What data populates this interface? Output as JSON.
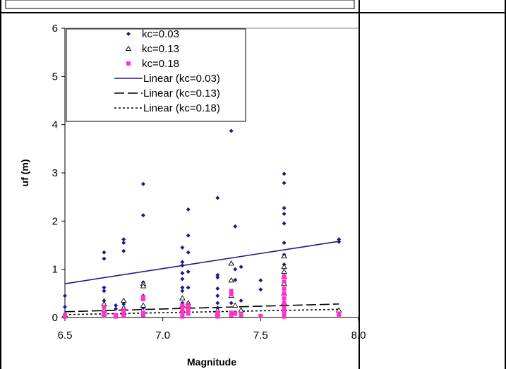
{
  "chart_data": {
    "type": "scatter",
    "xlabel": "Magnitude",
    "ylabel": "uf (m)",
    "xlim": [
      6.5,
      8.0
    ],
    "ylim": [
      0,
      6
    ],
    "xticks": [
      "6.5",
      "7.0",
      "7.5",
      "8.0"
    ],
    "yticks": [
      "0",
      "1",
      "2",
      "3",
      "4",
      "5",
      "6"
    ],
    "grid": false,
    "legend_position": "top-left",
    "series": [
      {
        "name": "kc=0.03",
        "marker": "diamond",
        "color": "#1a1a8c",
        "points": [
          [
            6.5,
            0.45
          ],
          [
            6.5,
            0.22
          ],
          [
            6.7,
            1.35
          ],
          [
            6.7,
            1.22
          ],
          [
            6.7,
            0.62
          ],
          [
            6.7,
            0.55
          ],
          [
            6.7,
            0.35
          ],
          [
            6.7,
            0.2
          ],
          [
            6.76,
            0.25
          ],
          [
            6.76,
            0.18
          ],
          [
            6.8,
            1.62
          ],
          [
            6.8,
            1.55
          ],
          [
            6.8,
            1.38
          ],
          [
            6.8,
            0.28
          ],
          [
            6.9,
            2.77
          ],
          [
            6.9,
            2.12
          ],
          [
            6.9,
            0.73
          ],
          [
            6.9,
            0.45
          ],
          [
            6.9,
            0.38
          ],
          [
            6.9,
            0.2
          ],
          [
            7.1,
            1.45
          ],
          [
            7.1,
            1.15
          ],
          [
            7.1,
            1.08
          ],
          [
            7.1,
            0.92
          ],
          [
            7.1,
            0.8
          ],
          [
            7.1,
            0.62
          ],
          [
            7.1,
            0.55
          ],
          [
            7.1,
            0.4
          ],
          [
            7.1,
            0.3
          ],
          [
            7.1,
            0.2
          ],
          [
            7.1,
            0.12
          ],
          [
            7.13,
            2.24
          ],
          [
            7.13,
            1.7
          ],
          [
            7.13,
            1.35
          ],
          [
            7.13,
            0.95
          ],
          [
            7.13,
            0.62
          ],
          [
            7.13,
            0.3
          ],
          [
            7.28,
            2.48
          ],
          [
            7.28,
            0.88
          ],
          [
            7.28,
            0.83
          ],
          [
            7.28,
            0.6
          ],
          [
            7.28,
            0.45
          ],
          [
            7.28,
            0.3
          ],
          [
            7.28,
            0.2
          ],
          [
            7.35,
            3.87
          ],
          [
            7.35,
            0.3
          ],
          [
            7.37,
            1.89
          ],
          [
            7.37,
            1.0
          ],
          [
            7.37,
            0.78
          ],
          [
            7.4,
            1.05
          ],
          [
            7.4,
            0.35
          ],
          [
            7.5,
            0.77
          ],
          [
            7.5,
            0.58
          ],
          [
            7.62,
            2.98
          ],
          [
            7.62,
            2.79
          ],
          [
            7.62,
            2.27
          ],
          [
            7.62,
            2.15
          ],
          [
            7.62,
            1.95
          ],
          [
            7.62,
            1.55
          ],
          [
            7.62,
            1.3
          ],
          [
            7.62,
            1.1
          ],
          [
            7.62,
            0.95
          ],
          [
            7.62,
            0.85
          ],
          [
            7.62,
            0.72
          ],
          [
            7.62,
            0.6
          ],
          [
            7.62,
            0.5
          ],
          [
            7.62,
            0.4
          ],
          [
            7.62,
            0.3
          ],
          [
            7.62,
            0.2
          ],
          [
            7.9,
            1.62
          ],
          [
            7.9,
            1.57
          ]
        ]
      },
      {
        "name": "kc=0.13",
        "marker": "triangle",
        "color": "#000000",
        "points": [
          [
            6.5,
            0.05
          ],
          [
            6.7,
            0.28
          ],
          [
            6.7,
            0.15
          ],
          [
            6.7,
            0.08
          ],
          [
            6.8,
            0.35
          ],
          [
            6.8,
            0.2
          ],
          [
            6.8,
            0.1
          ],
          [
            6.9,
            0.7
          ],
          [
            6.9,
            0.65
          ],
          [
            6.9,
            0.25
          ],
          [
            7.1,
            0.4
          ],
          [
            7.1,
            0.25
          ],
          [
            7.1,
            0.15
          ],
          [
            7.13,
            0.3
          ],
          [
            7.13,
            0.25
          ],
          [
            7.28,
            0.15
          ],
          [
            7.28,
            0.08
          ],
          [
            7.35,
            1.12
          ],
          [
            7.35,
            0.77
          ],
          [
            7.35,
            0.45
          ],
          [
            7.37,
            0.25
          ],
          [
            7.4,
            0.15
          ],
          [
            7.62,
            1.27
          ],
          [
            7.62,
            1.05
          ],
          [
            7.62,
            0.95
          ],
          [
            7.62,
            0.85
          ],
          [
            7.62,
            0.7
          ],
          [
            7.62,
            0.5
          ],
          [
            7.62,
            0.3
          ],
          [
            7.9,
            0.15
          ]
        ]
      },
      {
        "name": "kc=0.18",
        "marker": "square",
        "color": "#ff33cc",
        "points": [
          [
            6.5,
            0.02
          ],
          [
            6.5,
            0.05
          ],
          [
            6.7,
            0.22
          ],
          [
            6.7,
            0.1
          ],
          [
            6.7,
            0.04
          ],
          [
            6.76,
            0.05
          ],
          [
            6.76,
            0.02
          ],
          [
            6.8,
            0.15
          ],
          [
            6.8,
            0.08
          ],
          [
            6.8,
            0.03
          ],
          [
            6.9,
            0.42
          ],
          [
            6.9,
            0.38
          ],
          [
            6.9,
            0.1
          ],
          [
            6.9,
            0.05
          ],
          [
            7.1,
            0.25
          ],
          [
            7.1,
            0.18
          ],
          [
            7.1,
            0.12
          ],
          [
            7.1,
            0.06
          ],
          [
            7.1,
            0.02
          ],
          [
            7.13,
            0.25
          ],
          [
            7.13,
            0.2
          ],
          [
            7.13,
            0.14
          ],
          [
            7.13,
            0.08
          ],
          [
            7.28,
            0.1
          ],
          [
            7.28,
            0.05
          ],
          [
            7.28,
            0.02
          ],
          [
            7.35,
            0.55
          ],
          [
            7.35,
            0.48
          ],
          [
            7.35,
            0.1
          ],
          [
            7.35,
            0.05
          ],
          [
            7.37,
            0.08
          ],
          [
            7.4,
            0.05
          ],
          [
            7.5,
            0.03
          ],
          [
            7.62,
            0.85
          ],
          [
            7.62,
            0.75
          ],
          [
            7.62,
            0.6
          ],
          [
            7.62,
            0.5
          ],
          [
            7.62,
            0.4
          ],
          [
            7.62,
            0.3
          ],
          [
            7.62,
            0.2
          ],
          [
            7.62,
            0.15
          ],
          [
            7.62,
            0.1
          ],
          [
            7.62,
            0.05
          ],
          [
            7.62,
            0.02
          ],
          [
            7.9,
            0.08
          ],
          [
            7.9,
            0.04
          ]
        ]
      },
      {
        "name": "Linear (kc=0.03)",
        "type": "line",
        "style": "solid",
        "color": "#1a1a8c",
        "points": [
          [
            6.5,
            0.7
          ],
          [
            7.9,
            1.58
          ]
        ]
      },
      {
        "name": "Linear (kc=0.13)",
        "type": "line",
        "style": "dashed",
        "color": "#000000",
        "points": [
          [
            6.5,
            0.12
          ],
          [
            7.9,
            0.28
          ]
        ]
      },
      {
        "name": "Linear (kc=0.18)",
        "type": "line",
        "style": "dotted",
        "color": "#000000",
        "points": [
          [
            6.5,
            0.06
          ],
          [
            7.9,
            0.17
          ]
        ]
      }
    ]
  }
}
